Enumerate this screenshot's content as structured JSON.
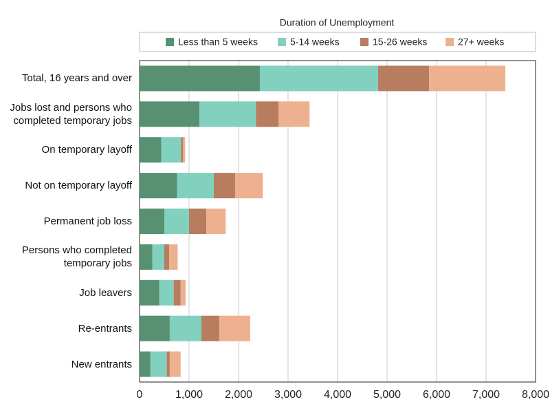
{
  "chart_data": {
    "type": "stacked-barh",
    "legend_title": "Duration of Unemployment",
    "categories": [
      "Total, 16 years and over",
      "Jobs lost and persons who completed temporary jobs",
      "On temporary layoff",
      "Not on temporary layoff",
      "Permanent job loss",
      "Persons who completed temporary jobs",
      "Job leavers",
      "Re-entrants",
      "New entrants"
    ],
    "series": [
      {
        "name": "Less than 5 weeks",
        "color": "#579172",
        "values": [
          2430,
          1210,
          440,
          760,
          500,
          260,
          400,
          610,
          220
        ]
      },
      {
        "name": "5-14 weeks",
        "color": "#82d0be",
        "values": [
          2390,
          1140,
          400,
          740,
          500,
          240,
          290,
          640,
          330
        ]
      },
      {
        "name": "15-26 weeks",
        "color": "#b87c5e",
        "values": [
          1030,
          460,
          40,
          430,
          350,
          100,
          140,
          360,
          60
        ]
      },
      {
        "name": "27+ weeks",
        "color": "#eeb190",
        "values": [
          1540,
          625,
          40,
          560,
          390,
          170,
          100,
          625,
          220
        ]
      }
    ],
    "xlim": [
      0,
      8000
    ],
    "xticks": [
      0,
      {
        "value": 1000,
        "label": "1,000"
      },
      {
        "value": 2000,
        "label": "2,000"
      },
      {
        "value": 3000,
        "label": "3,000"
      },
      {
        "value": 4000,
        "label": "4,000"
      },
      {
        "value": 5000,
        "label": "5,000"
      },
      {
        "value": 6000,
        "label": "6,000"
      },
      {
        "value": 7000,
        "label": "7,000"
      },
      {
        "value": 8000,
        "label": "8,000"
      }
    ],
    "grid": true
  }
}
